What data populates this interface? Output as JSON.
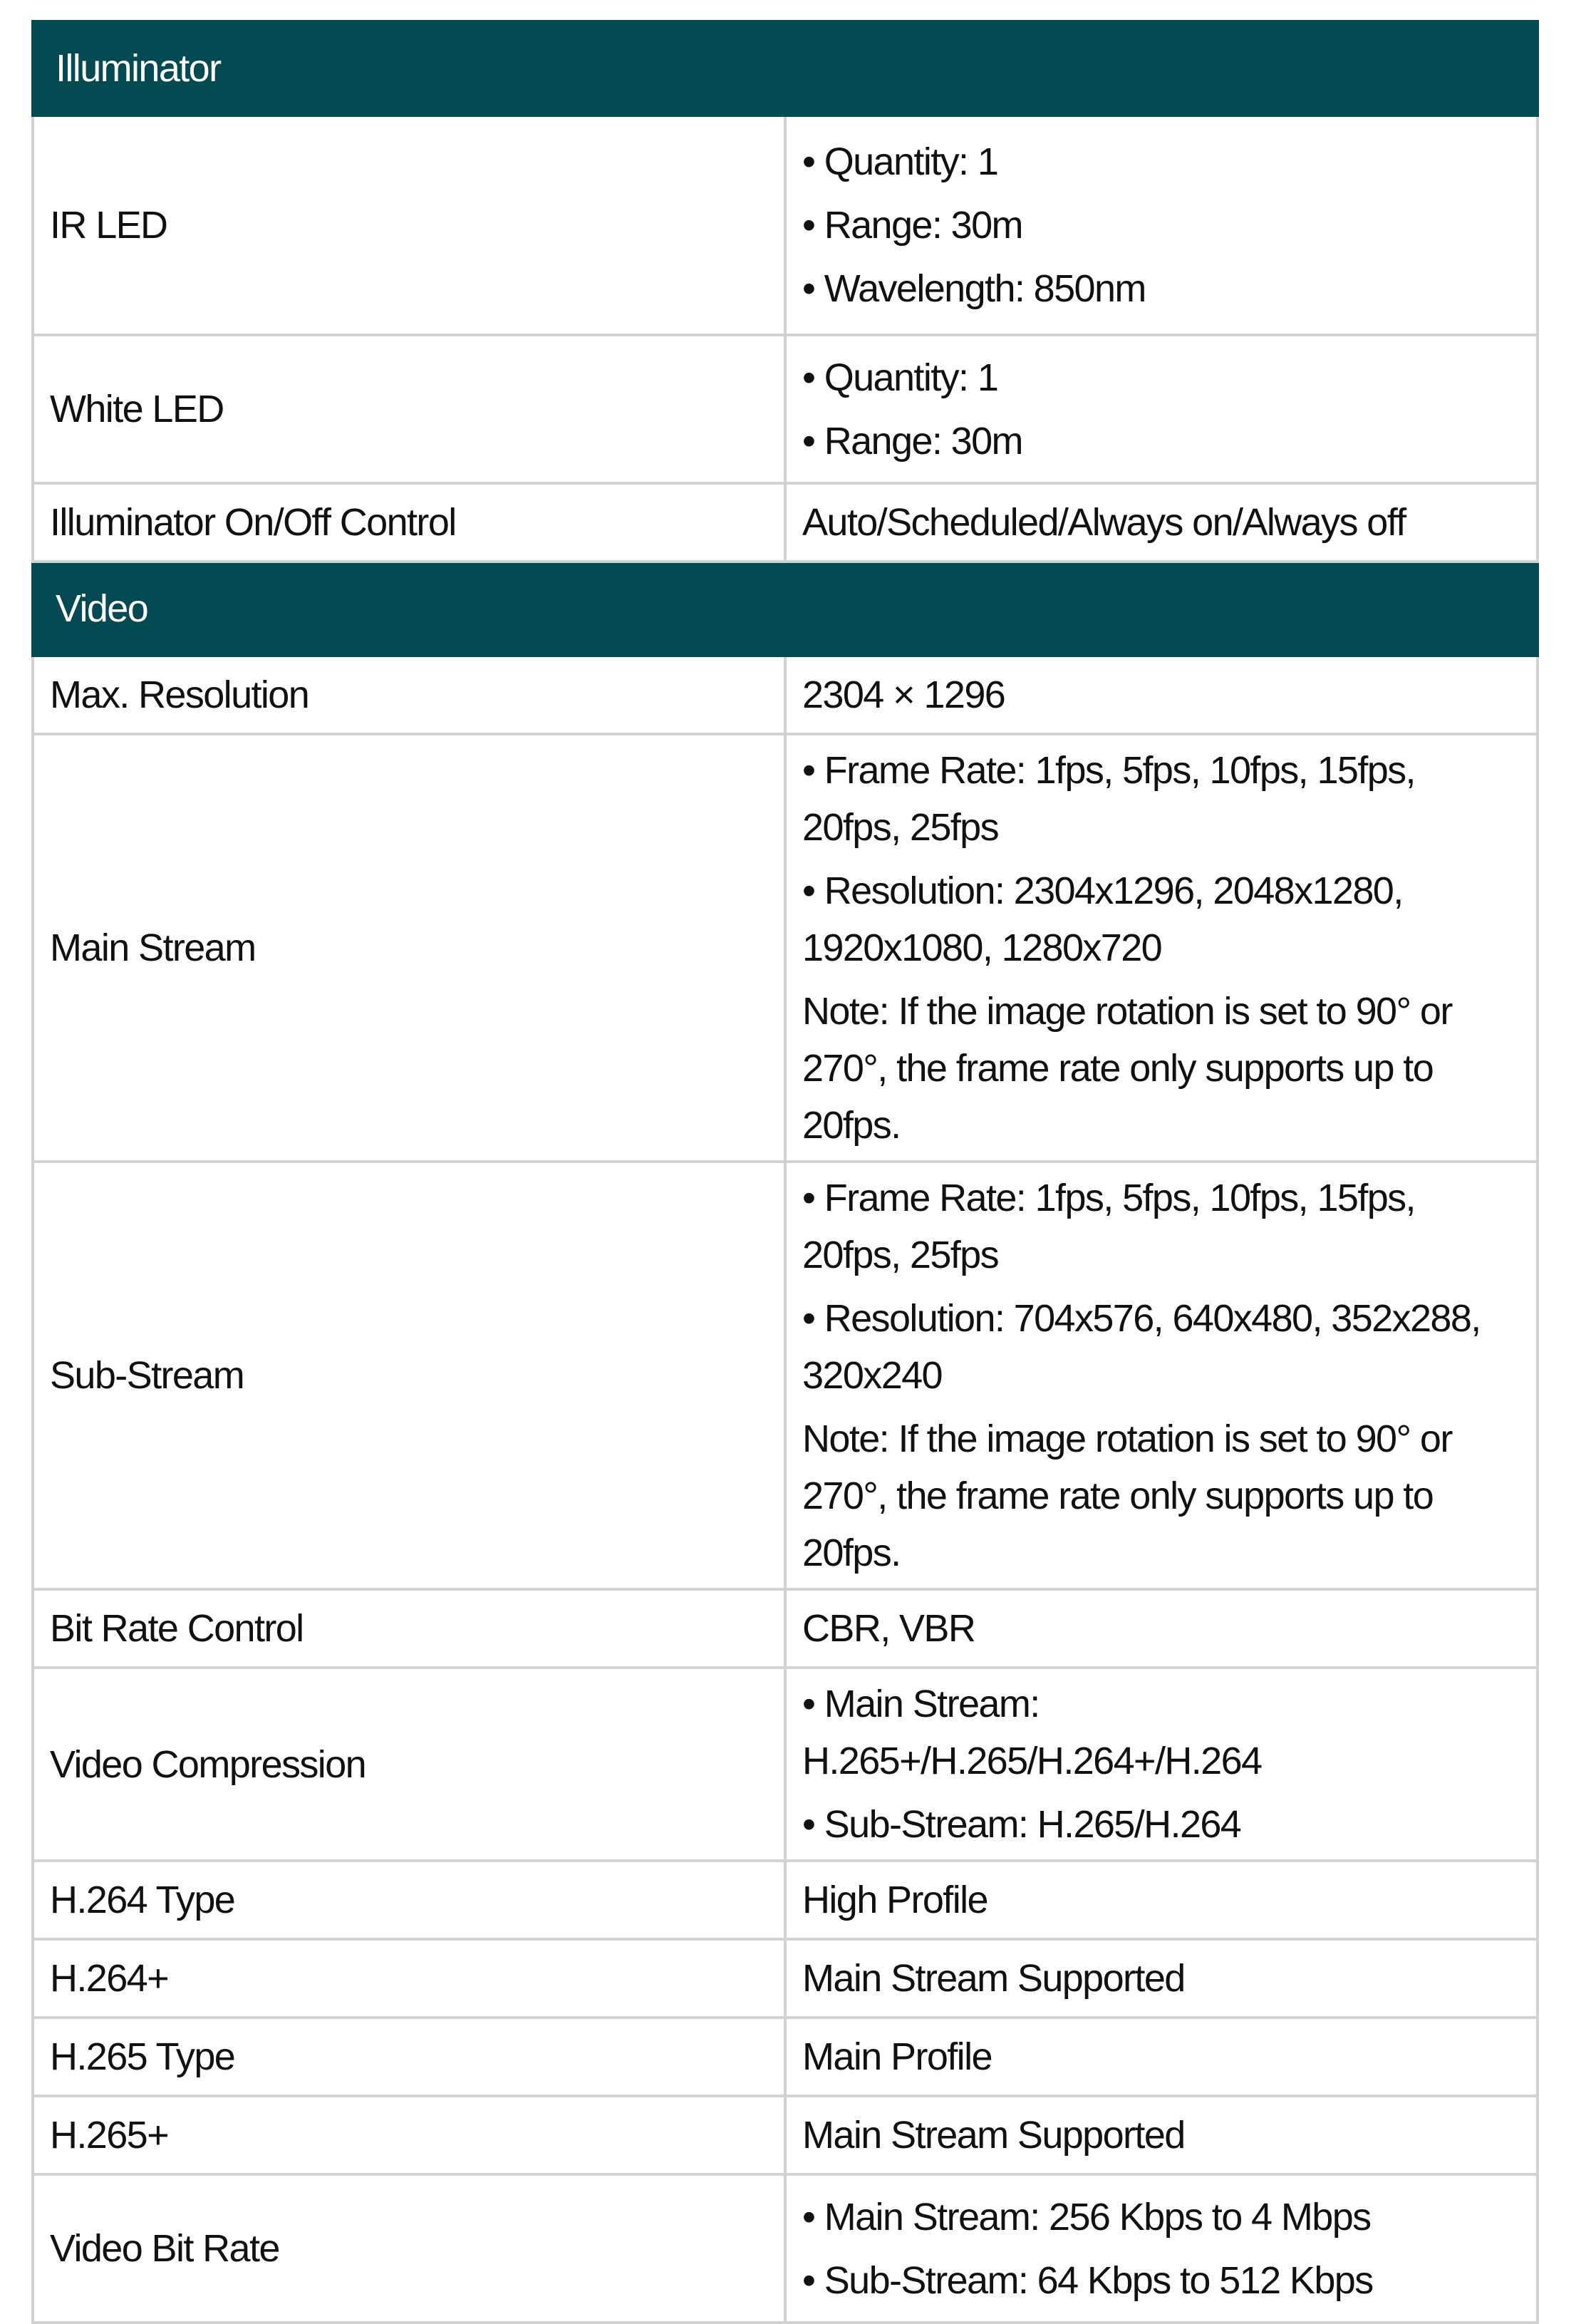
{
  "colors": {
    "section_header": "#034a52",
    "border": "#d2d2d2"
  },
  "sections": [
    {
      "title": "Illuminator",
      "rows": [
        {
          "label": "IR LED",
          "values": [
            "Quantity: 1",
            "Range: 30m",
            "Wavelength: 850nm"
          ],
          "bullets": true
        },
        {
          "label": "White LED",
          "values": [
            "Quantity: 1",
            "Range: 30m"
          ],
          "bullets": true
        },
        {
          "label": "Illuminator On/Off Control",
          "values": [
            "Auto/Scheduled/Always on/Always off"
          ],
          "bullets": false
        }
      ]
    },
    {
      "title": "Video",
      "rows": [
        {
          "label": "Max. Resolution",
          "values": [
            "2304 × 1296"
          ],
          "bullets": false
        },
        {
          "label": "Main Stream",
          "values": [
            "Frame Rate: 1fps, 5fps, 10fps, 15fps, 20fps, 25fps",
            "Resolution: 2304x1296, 2048x1280, 1920x1080, 1280x720"
          ],
          "note": "Note: If the image rotation is set to 90° or 270°, the frame rate only supports up to 20fps.",
          "bullets": true
        },
        {
          "label": "Sub-Stream",
          "values": [
            "Frame Rate: 1fps, 5fps, 10fps, 15fps, 20fps, 25fps",
            "Resolution: 704x576, 640x480, 352x288, 320x240"
          ],
          "note": "Note: If the image rotation is set to 90° or 270°, the frame rate only supports up to 20fps.",
          "bullets": true
        },
        {
          "label": "Bit Rate Control",
          "values": [
            "CBR, VBR"
          ],
          "bullets": false
        },
        {
          "label": "Video Compression",
          "values": [
            "Main Stream: H.265+/H.265/H.264+/H.264",
            "Sub-Stream: H.265/H.264"
          ],
          "bullets": true
        },
        {
          "label": "H.264 Type",
          "values": [
            "High Profile"
          ],
          "bullets": false
        },
        {
          "label": "H.264+",
          "values": [
            "Main Stream Supported"
          ],
          "bullets": false
        },
        {
          "label": "H.265 Type",
          "values": [
            "Main Profile"
          ],
          "bullets": false
        },
        {
          "label": "H.265+",
          "values": [
            "Main Stream Supported"
          ],
          "bullets": false
        },
        {
          "label": "Video Bit Rate",
          "values": [
            "Main Stream: 256 Kbps to 4 Mbps",
            "Sub-Stream: 64 Kbps to 512 Kbps"
          ],
          "bullets": true
        }
      ]
    }
  ]
}
